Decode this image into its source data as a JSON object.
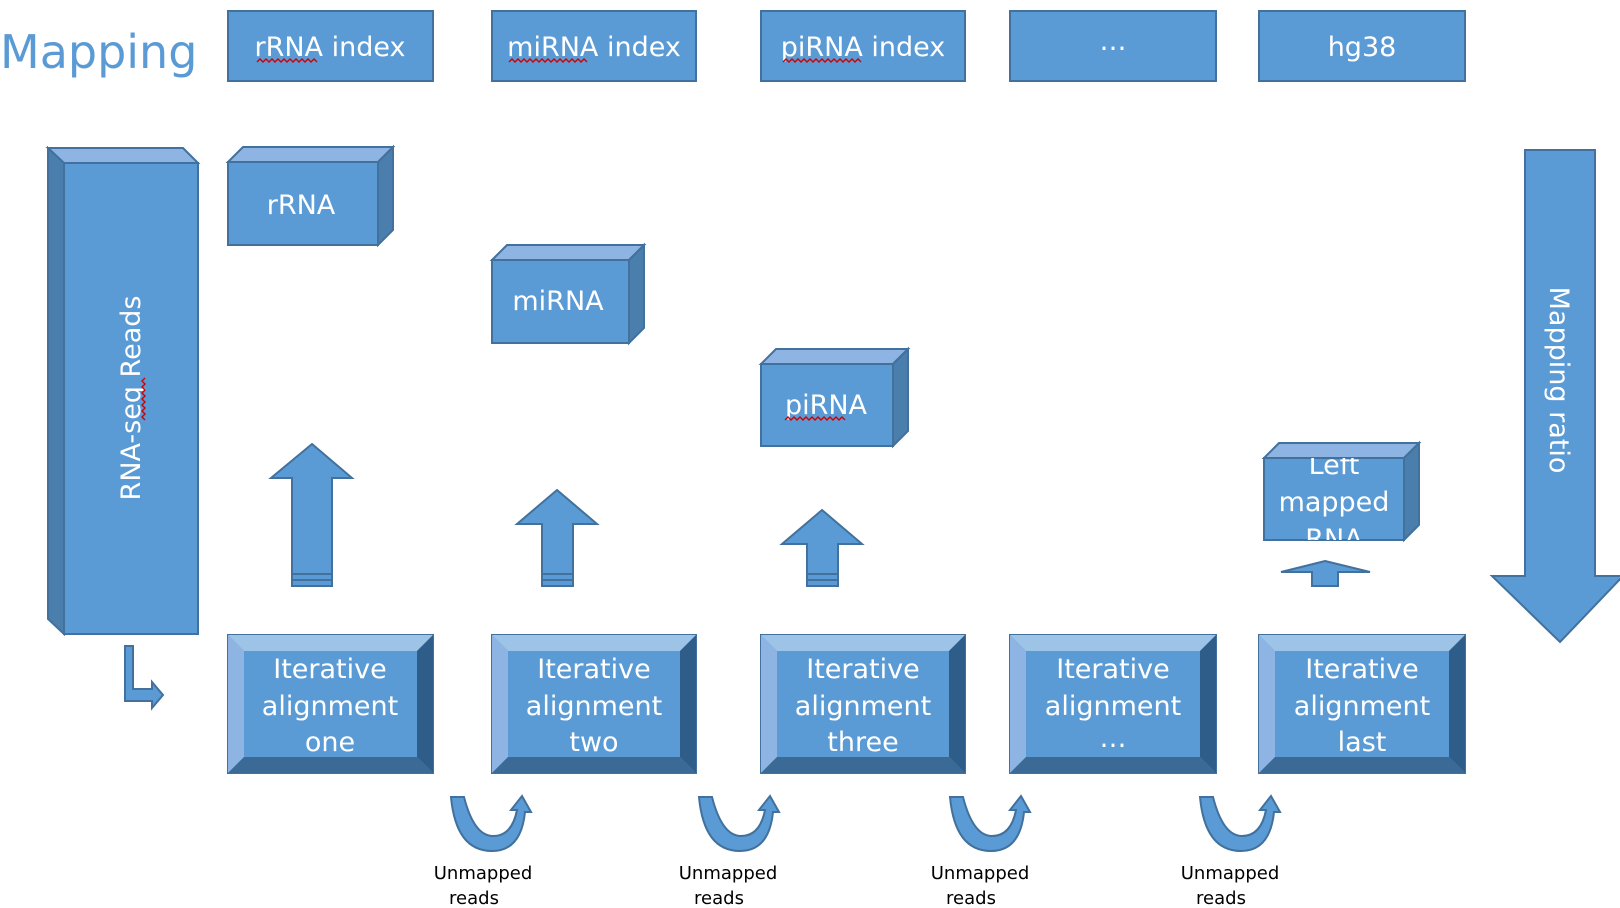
{
  "title": "Mapping",
  "indexes": [
    "rRNA index",
    "miRNA index",
    "piRNA index",
    "…",
    "hg38"
  ],
  "rna_types": [
    "rRNA",
    "miRNA",
    "piRNA",
    [
      "Left",
      "mapped",
      "RNA"
    ]
  ],
  "input_label": "RNA-seq Reads",
  "output_label": "Mapping ratio",
  "alignments": [
    [
      "Iterative",
      "alignment",
      "one"
    ],
    [
      "Iterative",
      "alignment",
      "two"
    ],
    [
      "Iterative",
      "alignment",
      "three"
    ],
    [
      "Iterative",
      "alignment",
      "…"
    ],
    [
      "Iterative",
      "alignment",
      "last"
    ]
  ],
  "unmapped_label": [
    "Unmapped",
    "reads"
  ],
  "colors": {
    "fill": "#5b9bd5",
    "border": "#41719c",
    "title": "#5b9bd5",
    "box_text": "#ffffff",
    "label_text": "#000000"
  }
}
